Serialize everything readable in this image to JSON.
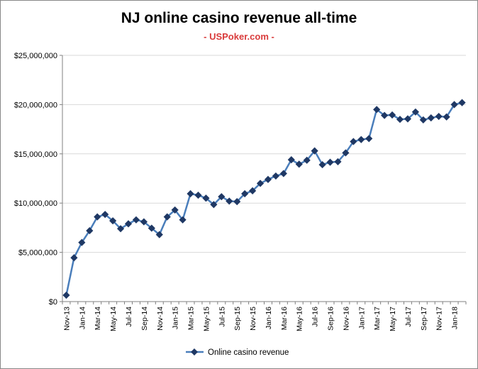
{
  "chart_data": {
    "type": "line",
    "title": "NJ online casino revenue all-time",
    "subtitle": "- USPoker.com -",
    "xlabel": "",
    "ylabel": "",
    "ylim": [
      0,
      25000000
    ],
    "y_ticks": [
      "$0",
      "$5,000,000",
      "$10,000,000",
      "$15,000,000",
      "$20,000,000",
      "$25,000,000"
    ],
    "grid": true,
    "legend_position": "bottom",
    "x": [
      "Nov-13",
      "Dec-13",
      "Jan-14",
      "Feb-14",
      "Mar-14",
      "Apr-14",
      "May-14",
      "Jun-14",
      "Jul-14",
      "Aug-14",
      "Sep-14",
      "Oct-14",
      "Nov-14",
      "Dec-14",
      "Jan-15",
      "Feb-15",
      "Mar-15",
      "Apr-15",
      "May-15",
      "Jun-15",
      "Jul-15",
      "Aug-15",
      "Sep-15",
      "Oct-15",
      "Nov-15",
      "Dec-15",
      "Jan-16",
      "Feb-16",
      "Mar-16",
      "Apr-16",
      "May-16",
      "Jun-16",
      "Jul-16",
      "Aug-16",
      "Sep-16",
      "Oct-16",
      "Nov-16",
      "Dec-16",
      "Jan-17",
      "Feb-17",
      "Mar-17",
      "Apr-17",
      "May-17",
      "Jun-17",
      "Jul-17",
      "Aug-17",
      "Sep-17",
      "Oct-17",
      "Nov-17",
      "Dec-17",
      "Jan-18",
      "Feb-18"
    ],
    "x_tick_labels": [
      "Nov-13",
      "Jan-14",
      "Mar-14",
      "May-14",
      "Jul-14",
      "Sep-14",
      "Nov-14",
      "Jan-15",
      "Mar-15",
      "May-15",
      "Jul-15",
      "Sep-15",
      "Nov-15",
      "Jan-16",
      "Mar-16",
      "May-16",
      "Jul-16",
      "Sep-16",
      "Nov-16",
      "Jan-17",
      "Mar-17",
      "May-17",
      "Jul-17",
      "Sep-17",
      "Nov-17",
      "Jan-18"
    ],
    "series": [
      {
        "name": "Online casino revenue",
        "color": "#4a7ebb",
        "marker_color": "#1f3864",
        "values": [
          650000,
          4450000,
          6000000,
          7200000,
          8600000,
          8850000,
          8200000,
          7400000,
          7900000,
          8300000,
          8100000,
          7450000,
          6800000,
          8600000,
          9300000,
          8300000,
          10950000,
          10800000,
          10500000,
          9850000,
          10650000,
          10200000,
          10150000,
          10950000,
          11250000,
          12000000,
          12400000,
          12750000,
          13000000,
          14400000,
          13950000,
          14350000,
          15300000,
          13900000,
          14150000,
          14200000,
          15100000,
          16250000,
          16450000,
          16550000,
          19500000,
          18900000,
          18950000,
          18500000,
          18550000,
          19250000,
          18450000,
          18650000,
          18800000,
          18750000,
          20000000,
          20200000
        ]
      }
    ]
  }
}
